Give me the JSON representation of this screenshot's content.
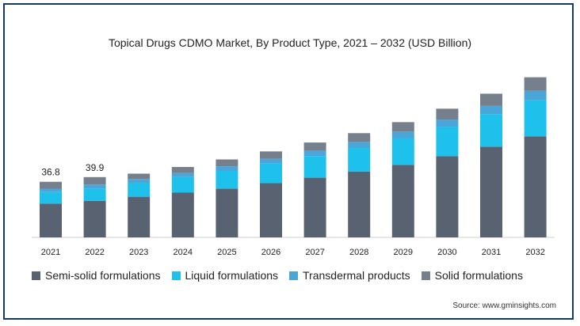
{
  "chart_data": {
    "type": "bar",
    "stacked": true,
    "title": "Topical Drugs CDMO Market, By Product Type, 2021 – 2032 (USD Billion)",
    "categories": [
      "2021",
      "2022",
      "2023",
      "2024",
      "2025",
      "2026",
      "2027",
      "2028",
      "2029",
      "2030",
      "2031",
      "2032"
    ],
    "series": [
      {
        "name": "Semi-solid formulations",
        "color": "#596270",
        "values": [
          22.4,
          24.2,
          26.9,
          29.6,
          32.3,
          35.9,
          39.5,
          43.5,
          48.0,
          53.8,
          60.1,
          66.9
        ]
      },
      {
        "name": "Liquid formulations",
        "color": "#1ec1ec",
        "values": [
          7.6,
          8.1,
          9.0,
          10.3,
          11.7,
          13.0,
          14.3,
          15.7,
          17.5,
          19.3,
          21.5,
          23.8
        ]
      },
      {
        "name": "Transdermal products",
        "color": "#4aa6d8",
        "values": [
          2.2,
          2.7,
          2.7,
          2.7,
          3.1,
          3.1,
          3.6,
          4.0,
          4.5,
          4.9,
          5.4,
          6.3
        ]
      },
      {
        "name": "Solid formulations",
        "color": "#75808c",
        "values": [
          4.6,
          4.9,
          3.6,
          4.0,
          4.5,
          4.9,
          5.4,
          5.8,
          6.3,
          7.2,
          8.1,
          9.0
        ]
      }
    ],
    "data_labels": [
      {
        "category": "2021",
        "text": "36.8"
      },
      {
        "category": "2022",
        "text": "39.9"
      }
    ],
    "xlabel": "",
    "ylabel": "",
    "ylim": [
      0,
      110
    ],
    "grid": false,
    "legend_position": "bottom"
  },
  "source_text": "Source: www.gminsights.com"
}
